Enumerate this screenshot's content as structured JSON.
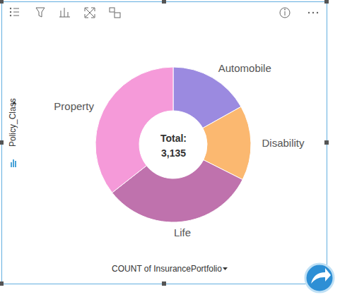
{
  "chart_data": {
    "type": "pie",
    "categories": [
      "Automobile",
      "Disability",
      "Life",
      "Property"
    ],
    "values": [
      529,
      488,
      1001,
      1117
    ],
    "colors": [
      "#9b8ae0",
      "#fbb870",
      "#bf72ad",
      "#f59ad9"
    ],
    "total_label": "Total:",
    "total": {
      "value": 3135,
      "label": "3,135"
    },
    "xlabel": "COUNT of InsurancePortfolio",
    "ylabel": "Policy_Class"
  }
}
